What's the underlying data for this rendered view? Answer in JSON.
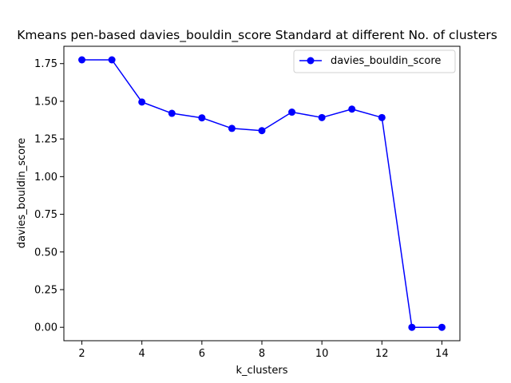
{
  "chart_data": {
    "type": "line",
    "title": "Kmeans pen-based davies_bouldin_score Standard at different No. of clusters",
    "xlabel": "k_clusters",
    "ylabel": "davies_bouldin_score",
    "xlim": [
      1.4,
      14.6
    ],
    "ylim": [
      -0.089,
      1.865
    ],
    "xticks": [
      2,
      4,
      6,
      8,
      10,
      12,
      14
    ],
    "xtick_labels": [
      "2",
      "4",
      "6",
      "8",
      "10",
      "12",
      "14"
    ],
    "yticks": [
      0,
      0.25,
      0.5,
      0.75,
      1.0,
      1.25,
      1.5,
      1.75
    ],
    "ytick_labels": [
      "0.00",
      "0.25",
      "0.50",
      "0.75",
      "1.00",
      "1.25",
      "1.50",
      "1.75"
    ],
    "grid": false,
    "legend_position": "top-right",
    "series": [
      {
        "name": "davies_bouldin_score",
        "color": "#0000ff",
        "marker": "circle",
        "x": [
          2,
          3,
          4,
          5,
          6,
          7,
          8,
          9,
          10,
          11,
          12,
          13,
          14
        ],
        "y": [
          1.775,
          1.775,
          1.495,
          1.42,
          1.39,
          1.32,
          1.305,
          1.428,
          1.392,
          1.448,
          1.392,
          0.0,
          0.0
        ]
      }
    ]
  }
}
